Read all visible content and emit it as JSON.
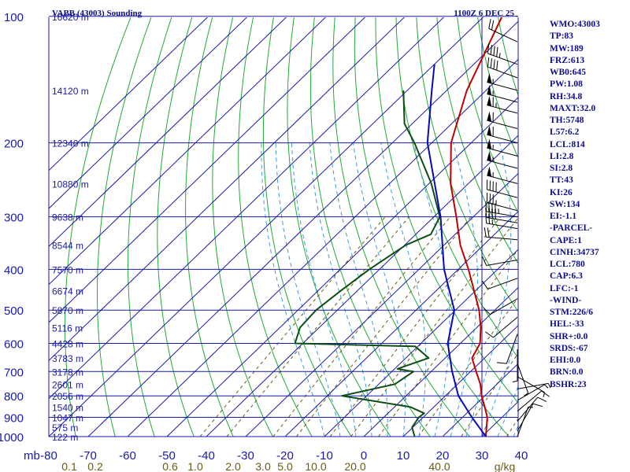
{
  "header": {
    "station": "VABB (43003) Sounding",
    "valid": "1100Z  6 DEC 25"
  },
  "chart_data": {
    "type": "skew-t log-p sounding",
    "title": "VABB (43003) Sounding",
    "pressure_label": "mb",
    "mixing_ratio_unit": "g/kg",
    "pressure_range_mb": [
      1000,
      100
    ],
    "temperature_range_c": [
      -80,
      40
    ],
    "pressure_ticks": [
      100,
      200,
      300,
      400,
      500,
      600,
      700,
      800,
      900,
      1000
    ],
    "temperature_ticks": [
      -80,
      -70,
      -60,
      -50,
      -40,
      -30,
      -20,
      -10,
      0,
      10,
      20,
      30,
      40
    ],
    "height_labels": [
      {
        "p": 100,
        "label": "16620 m"
      },
      {
        "p": 150,
        "label": "14120 m"
      },
      {
        "p": 200,
        "label": "12340 m"
      },
      {
        "p": 250,
        "label": "10880 m"
      },
      {
        "p": 300,
        "label": "9638 m"
      },
      {
        "p": 350,
        "label": "8544 m"
      },
      {
        "p": 400,
        "label": "7570 m"
      },
      {
        "p": 450,
        "label": "6674 m"
      },
      {
        "p": 500,
        "label": "5870 m"
      },
      {
        "p": 550,
        "label": "5116 m"
      },
      {
        "p": 600,
        "label": "4428 m"
      },
      {
        "p": 650,
        "label": "3783 m"
      },
      {
        "p": 700,
        "label": "3178 m"
      },
      {
        "p": 750,
        "label": "2601 m"
      },
      {
        "p": 800,
        "label": "2056 m"
      },
      {
        "p": 850,
        "label": "1540 m"
      },
      {
        "p": 900,
        "label": "1047 m"
      },
      {
        "p": 950,
        "label": "575 m"
      },
      {
        "p": 1000,
        "label": "122 m"
      }
    ],
    "mixing_ratio_labels": [
      "0.1",
      "0.2",
      "0.6",
      "1.0",
      "2.0",
      "3.0",
      "5.0",
      "10.0",
      "20.0",
      "40.0"
    ],
    "series": [
      {
        "name": "Temperature",
        "color": "#c00000",
        "points": [
          {
            "p": 100,
            "t": -75.4
          },
          {
            "p": 150,
            "t": -64.9
          },
          {
            "p": 200,
            "t": -55.1
          },
          {
            "p": 250,
            "t": -44.5
          },
          {
            "p": 300,
            "t": -34.3
          },
          {
            "p": 350,
            "t": -25.9
          },
          {
            "p": 400,
            "t": -17.4
          },
          {
            "p": 450,
            "t": -10.3
          },
          {
            "p": 500,
            "t": -4.0
          },
          {
            "p": 550,
            "t": 1.0
          },
          {
            "p": 600,
            "t": 5.0
          },
          {
            "p": 650,
            "t": 6.8
          },
          {
            "p": 700,
            "t": 11.4
          },
          {
            "p": 750,
            "t": 15.8
          },
          {
            "p": 800,
            "t": 19.2
          },
          {
            "p": 850,
            "t": 22.9
          },
          {
            "p": 900,
            "t": 26.3
          },
          {
            "p": 950,
            "t": 28.7
          },
          {
            "p": 1000,
            "t": 31.0
          }
        ]
      },
      {
        "name": "Dewpoint",
        "color": "#0e4d14",
        "points": [
          {
            "p": 150,
            "t": -81
          },
          {
            "p": 180,
            "t": -72
          },
          {
            "p": 200,
            "t": -64.4
          },
          {
            "p": 250,
            "t": -49.4
          },
          {
            "p": 300,
            "t": -38.5
          },
          {
            "p": 330,
            "t": -36.2
          },
          {
            "p": 350,
            "t": -39.7
          },
          {
            "p": 400,
            "t": -42.6
          },
          {
            "p": 450,
            "t": -44.2
          },
          {
            "p": 500,
            "t": -45.4
          },
          {
            "p": 550,
            "t": -44.9
          },
          {
            "p": 600,
            "t": -42.0
          },
          {
            "p": 610,
            "t": -10.7
          },
          {
            "p": 650,
            "t": -4.2
          },
          {
            "p": 690,
            "t": -9.3
          },
          {
            "p": 700,
            "t": -4.5
          },
          {
            "p": 750,
            "t": -5.9
          },
          {
            "p": 800,
            "t": -16.3
          },
          {
            "p": 850,
            "t": 4.0
          },
          {
            "p": 880,
            "t": 9.2
          },
          {
            "p": 900,
            "t": 8.9
          },
          {
            "p": 950,
            "t": 9.8
          },
          {
            "p": 1000,
            "t": 12.9
          }
        ]
      },
      {
        "name": "Parcel",
        "color": "#0a0ab4",
        "points": [
          {
            "p": 1000,
            "t": 31.0
          },
          {
            "p": 900,
            "t": 22.4
          },
          {
            "p": 800,
            "t": 13.3
          },
          {
            "p": 700,
            "t": 5.3
          },
          {
            "p": 600,
            "t": -3.2
          },
          {
            "p": 500,
            "t": -10.3
          },
          {
            "p": 400,
            "t": -23.6
          },
          {
            "p": 300,
            "t": -38.3
          },
          {
            "p": 200,
            "t": -61.1
          },
          {
            "p": 150,
            "t": -73.8
          },
          {
            "p": 130,
            "t": -80.0
          }
        ]
      }
    ],
    "wind_barbs": [
      {
        "p": 100,
        "dir": 300,
        "spd": 15
      },
      {
        "p": 115,
        "dir": 295,
        "spd": 20
      },
      {
        "p": 130,
        "dir": 290,
        "spd": 45
      },
      {
        "p": 140,
        "dir": 290,
        "spd": 40
      },
      {
        "p": 150,
        "dir": 285,
        "spd": 55
      },
      {
        "p": 160,
        "dir": 285,
        "spd": 55
      },
      {
        "p": 170,
        "dir": 285,
        "spd": 65
      },
      {
        "p": 185,
        "dir": 285,
        "spd": 60
      },
      {
        "p": 200,
        "dir": 285,
        "spd": 60
      },
      {
        "p": 215,
        "dir": 285,
        "spd": 55
      },
      {
        "p": 230,
        "dir": 285,
        "spd": 55
      },
      {
        "p": 250,
        "dir": 285,
        "spd": 55
      },
      {
        "p": 270,
        "dir": 285,
        "spd": 40
      },
      {
        "p": 290,
        "dir": 285,
        "spd": 35
      },
      {
        "p": 300,
        "dir": 280,
        "spd": 45
      },
      {
        "p": 310,
        "dir": 280,
        "spd": 40
      },
      {
        "p": 320,
        "dir": 280,
        "spd": 25
      },
      {
        "p": 340,
        "dir": 275,
        "spd": 20
      },
      {
        "p": 380,
        "dir": 260,
        "spd": 10
      },
      {
        "p": 420,
        "dir": 250,
        "spd": 10
      },
      {
        "p": 470,
        "dir": 240,
        "spd": 10
      },
      {
        "p": 520,
        "dir": 230,
        "spd": 10
      },
      {
        "p": 570,
        "dir": 200,
        "spd": 10
      },
      {
        "p": 620,
        "dir": 180,
        "spd": 5
      },
      {
        "p": 670,
        "dir": 160,
        "spd": 5
      },
      {
        "p": 720,
        "dir": 120,
        "spd": 5
      },
      {
        "p": 770,
        "dir": 80,
        "spd": 5
      },
      {
        "p": 820,
        "dir": 60,
        "spd": 5
      },
      {
        "p": 870,
        "dir": 50,
        "spd": 10
      },
      {
        "p": 920,
        "dir": 40,
        "spd": 10
      },
      {
        "p": 970,
        "dir": 30,
        "spd": 10
      },
      {
        "p": 1000,
        "dir": 20,
        "spd": 5
      }
    ]
  },
  "indices": [
    "WMO:43003",
    "TP:83",
    "MW:189",
    "FRZ:613",
    "WB0:645",
    "PW:1.08",
    "RH:34.8",
    "MAXT:32.0",
    "TH:5748",
    "L57:6.2",
    "LCL:814",
    "LI:2.8",
    "SI:2.8",
    "TT:43",
    "KI:26",
    "SW:134",
    "EI:-1.1",
    "-PARCEL-",
    "CAPE:1",
    "CINH:34737",
    "LCL:780",
    "CAP:6.3",
    "LFC:-1",
    "-WIND-",
    "STM:226/6",
    "HEL:-33",
    "SHR+:0.0",
    "SRDS:-67",
    "EHI:0.0",
    "BRN:0.0",
    "BSHR:23"
  ],
  "colors": {
    "grid_blue": "#1a1aa8",
    "dry_adiabat": "#22aa33",
    "mixing_ratio": "#6b5a14",
    "moist_adiabat": "#3b9be6",
    "barb": "#000000"
  }
}
